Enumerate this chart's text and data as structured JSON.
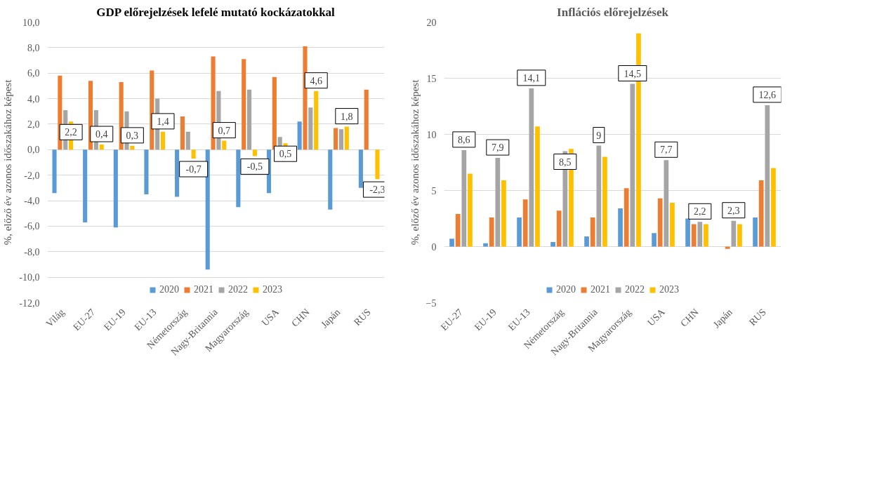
{
  "chart_data": [
    {
      "type": "bar",
      "title": "GDP előrejelzések lefelé mutató kockázatokkal",
      "ylabel": "%, előző év azonos időszakához képest",
      "categories": [
        "Világ",
        "EU-27",
        "EU-19",
        "EU-13",
        "Németország",
        "Nagy-Britannia",
        "Magyarország",
        "USA",
        "CHN",
        "Japán",
        "RUS"
      ],
      "series": [
        {
          "name": "2020",
          "color": "#5b9bd5",
          "values": [
            -3.4,
            -5.7,
            -6.1,
            -3.5,
            -3.7,
            -9.4,
            -4.5,
            -3.4,
            2.2,
            -4.7,
            -3.0
          ]
        },
        {
          "name": "2021",
          "color": "#ed7d31",
          "values": [
            5.8,
            5.4,
            5.3,
            6.2,
            2.6,
            7.3,
            7.1,
            5.7,
            8.1,
            1.7,
            4.7
          ]
        },
        {
          "name": "2022",
          "color": "#a5a5a5",
          "values": [
            3.1,
            3.1,
            3.0,
            4.0,
            1.4,
            4.6,
            4.7,
            1.0,
            3.3,
            1.6,
            null
          ]
        },
        {
          "name": "2023",
          "color": "#ffc000",
          "values": [
            2.2,
            0.4,
            0.3,
            1.4,
            -0.7,
            0.7,
            -0.5,
            0.5,
            4.6,
            1.8,
            -2.3
          ],
          "value_labels": [
            "2,2",
            "0,4",
            "0,3",
            "1,4",
            "-0,7",
            "0,7",
            "-0,5",
            "0,5",
            "4,6",
            "1,8",
            "-2,3"
          ]
        }
      ],
      "ylim": [
        -12,
        10
      ],
      "yticks": [
        {
          "value": -12,
          "label": "-12,0"
        },
        {
          "value": -10,
          "label": "-10,0"
        },
        {
          "value": -8,
          "label": "-8,0"
        },
        {
          "value": -6,
          "label": "-6,0"
        },
        {
          "value": -4,
          "label": "-4,0"
        },
        {
          "value": -2,
          "label": "-2,0"
        },
        {
          "value": 0,
          "label": "0,0"
        },
        {
          "value": 2,
          "label": "2,0"
        },
        {
          "value": 4,
          "label": "4,0"
        },
        {
          "value": 6,
          "label": "6,0"
        },
        {
          "value": 8,
          "label": "8,0"
        },
        {
          "value": 10,
          "label": "10,0"
        }
      ],
      "grid": "y",
      "legend": "bottom"
    },
    {
      "type": "bar",
      "title": "Inflációs előrejelzések",
      "ylabel": "%, előző év azonos időszakához képest",
      "categories": [
        "EU-27",
        "EU-19",
        "EU-13",
        "Németország",
        "Nagy-Britannia",
        "Magyarország",
        "USA",
        "CHN",
        "Japán",
        "RUS"
      ],
      "series": [
        {
          "name": "2020",
          "color": "#5b9bd5",
          "values": [
            0.7,
            0.3,
            2.6,
            0.4,
            0.9,
            3.4,
            1.2,
            2.5,
            null,
            2.6
          ]
        },
        {
          "name": "2021",
          "color": "#ed7d31",
          "values": [
            2.9,
            2.6,
            4.2,
            3.2,
            2.6,
            5.2,
            4.3,
            2.0,
            -0.2,
            5.9
          ]
        },
        {
          "name": "2022",
          "color": "#a5a5a5",
          "values": [
            8.6,
            7.9,
            14.1,
            8.5,
            9,
            14.5,
            7.7,
            2.2,
            2.3,
            12.6
          ],
          "value_labels": [
            "8,6",
            "7,9",
            "14,1",
            "8,5",
            "9",
            "14,5",
            "7,7",
            "2,2",
            "2,3",
            "12,6"
          ]
        },
        {
          "name": "2023",
          "color": "#ffc000",
          "values": [
            6.5,
            5.9,
            10.7,
            8.7,
            8.0,
            19.0,
            3.9,
            2.0,
            2.0,
            7.0
          ]
        }
      ],
      "ylim": [
        -5,
        20
      ],
      "yticks": [
        -5,
        0,
        5,
        10,
        15,
        20
      ],
      "grid": "y",
      "legend": "bottom"
    }
  ]
}
